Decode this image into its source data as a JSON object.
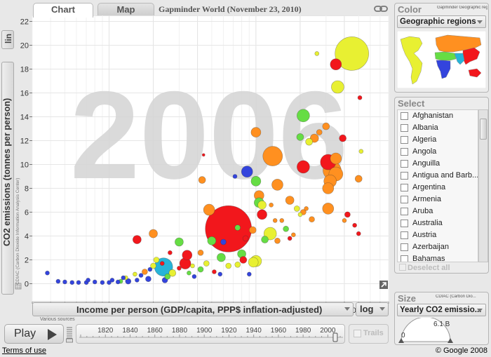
{
  "tabs": [
    {
      "label": "Chart",
      "active": true
    },
    {
      "label": "Map",
      "active": false
    }
  ],
  "title": "Gapminder World (November 23, 2010)",
  "icons": {
    "link": "link-icon",
    "expand": "expand-icon",
    "play": "play-icon"
  },
  "y_scale": "lin",
  "x_scale": "log",
  "year_watermark": "2006",
  "axes": {
    "y_label": "CO2 emissions (tonnes per person)",
    "y_source": "CDIAC (Carbon Dioxide Information Analysis Center)",
    "x_label": "Income per person (GDP/capita, PPP$ inflation-adjusted)",
    "x_source": "Various sources"
  },
  "chart_data": {
    "type": "scatter",
    "x_scale": "log",
    "xlim": [
      300,
      80000
    ],
    "ylim": [
      -1.5,
      22.5
    ],
    "x_ticks": [
      {
        "value": 1000,
        "label": "1 000"
      },
      {
        "value": 2000,
        "label": "2 000"
      },
      {
        "value": 4000,
        "label": "4 000"
      },
      {
        "value": 10000,
        "label": "10 000"
      },
      {
        "value": 20000,
        "label": "20 000"
      },
      {
        "value": 40000,
        "label": "40 000"
      }
    ],
    "y_ticks": [
      0,
      2,
      4,
      6,
      8,
      10,
      12,
      14,
      16,
      18,
      20,
      22
    ],
    "grid": true,
    "points": [
      {
        "x": 6500,
        "y": 4.6,
        "r": 33,
        "color": "#f2171c"
      },
      {
        "x": 45000,
        "y": 19.3,
        "r": 24,
        "color": "#e8f032"
      },
      {
        "x": 2350,
        "y": 1.4,
        "r": 13,
        "color": "#27b4d8"
      },
      {
        "x": 13000,
        "y": 10.7,
        "r": 14,
        "color": "#ff9020"
      },
      {
        "x": 33000,
        "y": 9.5,
        "r": 13,
        "color": "#ff9020"
      },
      {
        "x": 31000,
        "y": 10.2,
        "r": 11,
        "color": "#f2171c"
      },
      {
        "x": 35000,
        "y": 9.2,
        "r": 10,
        "color": "#ff9020"
      },
      {
        "x": 32000,
        "y": 8.6,
        "r": 9,
        "color": "#ff9020"
      },
      {
        "x": 35000,
        "y": 10.5,
        "r": 8,
        "color": "#ff9020"
      },
      {
        "x": 31000,
        "y": 8.0,
        "r": 8,
        "color": "#ff9020"
      },
      {
        "x": 36000,
        "y": 16.5,
        "r": 9,
        "color": "#e8f032"
      },
      {
        "x": 21000,
        "y": 14.1,
        "r": 9,
        "color": "#66dd44"
      },
      {
        "x": 21000,
        "y": 9.8,
        "r": 9,
        "color": "#f2171c"
      },
      {
        "x": 31000,
        "y": 6.3,
        "r": 8,
        "color": "#ff9020"
      },
      {
        "x": 35000,
        "y": 18.4,
        "r": 8,
        "color": "#f2171c"
      },
      {
        "x": 12500,
        "y": 4.2,
        "r": 9,
        "color": "#e8f032"
      },
      {
        "x": 14000,
        "y": 8.3,
        "r": 8,
        "color": "#ff9020"
      },
      {
        "x": 8700,
        "y": 9.4,
        "r": 8,
        "color": "#3344dd"
      },
      {
        "x": 10000,
        "y": 8.6,
        "r": 7,
        "color": "#66dd44"
      },
      {
        "x": 10000,
        "y": 12.7,
        "r": 7,
        "color": "#ff9020"
      },
      {
        "x": 4800,
        "y": 6.2,
        "r": 8,
        "color": "#ff9020"
      },
      {
        "x": 3300,
        "y": 1.7,
        "r": 8,
        "color": "#f2171c"
      },
      {
        "x": 3400,
        "y": 2.4,
        "r": 7,
        "color": "#f2171c"
      },
      {
        "x": 3000,
        "y": 3.5,
        "r": 6,
        "color": "#66dd44"
      },
      {
        "x": 2000,
        "y": 4.2,
        "r": 6,
        "color": "#ff9020"
      },
      {
        "x": 1550,
        "y": 3.7,
        "r": 6,
        "color": "#f2171c"
      },
      {
        "x": 11000,
        "y": 5.8,
        "r": 7,
        "color": "#f2171c"
      },
      {
        "x": 10000,
        "y": 1.9,
        "r": 8,
        "color": "#e8f032"
      },
      {
        "x": 9600,
        "y": 1.8,
        "r": 7,
        "color": "#e8f032"
      },
      {
        "x": 11000,
        "y": 6.6,
        "r": 6,
        "color": "#e8f032"
      },
      {
        "x": 25000,
        "y": 12.2,
        "r": 6,
        "color": "#ff9020"
      },
      {
        "x": 23000,
        "y": 11.9,
        "r": 5,
        "color": "#e8f032"
      },
      {
        "x": 27000,
        "y": 12.7,
        "r": 4,
        "color": "#ff9020"
      },
      {
        "x": 20000,
        "y": 12.3,
        "r": 5,
        "color": "#66dd44"
      },
      {
        "x": 30000,
        "y": 13.2,
        "r": 5,
        "color": "#ff9020"
      },
      {
        "x": 17000,
        "y": 7.0,
        "r": 6,
        "color": "#ff9020"
      },
      {
        "x": 10500,
        "y": 7.4,
        "r": 7,
        "color": "#ff9020"
      },
      {
        "x": 10500,
        "y": 6.8,
        "r": 7,
        "color": "#66dd44"
      },
      {
        "x": 8000,
        "y": 2.5,
        "r": 6,
        "color": "#66dd44"
      },
      {
        "x": 5800,
        "y": 2.2,
        "r": 6,
        "color": "#66dd44"
      },
      {
        "x": 5000,
        "y": 3.6,
        "r": 6,
        "color": "#66dd44"
      },
      {
        "x": 4300,
        "y": 8.7,
        "r": 5,
        "color": "#ff9020"
      },
      {
        "x": 2700,
        "y": 0.9,
        "r": 5,
        "color": "#e8f032"
      },
      {
        "x": 26000,
        "y": 19.3,
        "r": 3,
        "color": "#e8f032"
      },
      {
        "x": 51000,
        "y": 15.6,
        "r": 3,
        "color": "#f2171c"
      },
      {
        "x": 39000,
        "y": 12.2,
        "r": 5,
        "color": "#f2171c"
      },
      {
        "x": 4400,
        "y": 10.8,
        "r": 2,
        "color": "#f2171c"
      },
      {
        "x": 52000,
        "y": 11.1,
        "r": 3,
        "color": "#e8f032"
      },
      {
        "x": 50000,
        "y": 8.8,
        "r": 5,
        "color": "#ff9020"
      },
      {
        "x": 47000,
        "y": 4.9,
        "r": 3,
        "color": "#f2171c"
      },
      {
        "x": 50000,
        "y": 4.2,
        "r": 3,
        "color": "#f2171c"
      },
      {
        "x": 42000,
        "y": 5.8,
        "r": 4,
        "color": "#f2171c"
      },
      {
        "x": 40000,
        "y": 5.3,
        "r": 3,
        "color": "#ff9020"
      },
      {
        "x": 21000,
        "y": 6.0,
        "r": 4,
        "color": "#ff9020"
      },
      {
        "x": 22000,
        "y": 6.3,
        "r": 3,
        "color": "#ff9020"
      },
      {
        "x": 24000,
        "y": 5.4,
        "r": 4,
        "color": "#ff9020"
      },
      {
        "x": 20000,
        "y": 5.8,
        "r": 3,
        "color": "#e8f032"
      },
      {
        "x": 19000,
        "y": 6.3,
        "r": 4,
        "color": "#e8f032"
      },
      {
        "x": 16000,
        "y": 4.6,
        "r": 4,
        "color": "#66dd44"
      },
      {
        "x": 15000,
        "y": 5.3,
        "r": 3,
        "color": "#ff9020"
      },
      {
        "x": 17000,
        "y": 3.8,
        "r": 3,
        "color": "#f2171c"
      },
      {
        "x": 14000,
        "y": 3.6,
        "r": 4,
        "color": "#ff9020"
      },
      {
        "x": 18000,
        "y": 4.1,
        "r": 3,
        "color": "#ff9020"
      },
      {
        "x": 9500,
        "y": 4.5,
        "r": 5,
        "color": "#ff9020"
      },
      {
        "x": 11500,
        "y": 3.7,
        "r": 5,
        "color": "#66dd44"
      },
      {
        "x": 8500,
        "y": 3.8,
        "r": 4,
        "color": "#f2171c"
      },
      {
        "x": 6000,
        "y": 3.5,
        "r": 4,
        "color": "#3344dd"
      },
      {
        "x": 7500,
        "y": 4.7,
        "r": 4,
        "color": "#66dd44"
      },
      {
        "x": 8200,
        "y": 2.0,
        "r": 5,
        "color": "#f2171c"
      },
      {
        "x": 7500,
        "y": 1.6,
        "r": 4,
        "color": "#e8f032"
      },
      {
        "x": 6500,
        "y": 1.5,
        "r": 4,
        "color": "#e8f032"
      },
      {
        "x": 4200,
        "y": 2.6,
        "r": 4,
        "color": "#ff9020"
      },
      {
        "x": 3700,
        "y": 1.5,
        "r": 3,
        "color": "#e8f032"
      },
      {
        "x": 4600,
        "y": 1.7,
        "r": 4,
        "color": "#e8f032"
      },
      {
        "x": 4200,
        "y": 1.2,
        "r": 4,
        "color": "#66dd44"
      },
      {
        "x": 3500,
        "y": 0.9,
        "r": 3,
        "color": "#66dd44"
      },
      {
        "x": 3000,
        "y": 1.3,
        "r": 3,
        "color": "#f2171c"
      },
      {
        "x": 2600,
        "y": 2.6,
        "r": 3,
        "color": "#f2171c"
      },
      {
        "x": 2100,
        "y": 2.0,
        "r": 4,
        "color": "#e8f032"
      },
      {
        "x": 2000,
        "y": 1.5,
        "r": 4,
        "color": "#e8f032"
      },
      {
        "x": 1750,
        "y": 1.0,
        "r": 4,
        "color": "#ff9020"
      },
      {
        "x": 1500,
        "y": 0.8,
        "r": 3,
        "color": "#e8f032"
      },
      {
        "x": 1300,
        "y": 0.5,
        "r": 3,
        "color": "#e8f032"
      },
      {
        "x": 1200,
        "y": 0.2,
        "r": 3,
        "color": "#66dd44"
      },
      {
        "x": 2400,
        "y": 0.3,
        "r": 4,
        "color": "#3344dd"
      },
      {
        "x": 2500,
        "y": 0.6,
        "r": 4,
        "color": "#66dd44"
      },
      {
        "x": 1850,
        "y": 0.4,
        "r": 4,
        "color": "#3344dd"
      },
      {
        "x": 1550,
        "y": 0.3,
        "r": 3,
        "color": "#3344dd"
      },
      {
        "x": 1350,
        "y": 0.2,
        "r": 4,
        "color": "#3344dd"
      },
      {
        "x": 1150,
        "y": 0.15,
        "r": 3,
        "color": "#3344dd"
      },
      {
        "x": 1000,
        "y": 0.1,
        "r": 3,
        "color": "#3344dd"
      },
      {
        "x": 900,
        "y": 0.1,
        "r": 3,
        "color": "#3344dd"
      },
      {
        "x": 800,
        "y": 0.15,
        "r": 3,
        "color": "#3344dd"
      },
      {
        "x": 700,
        "y": 0.1,
        "r": 3,
        "color": "#3344dd"
      },
      {
        "x": 620,
        "y": 0.1,
        "r": 3,
        "color": "#3344dd"
      },
      {
        "x": 560,
        "y": 0.1,
        "r": 3,
        "color": "#3344dd"
      },
      {
        "x": 500,
        "y": 0.15,
        "r": 3,
        "color": "#3344dd"
      },
      {
        "x": 450,
        "y": 0.2,
        "r": 3,
        "color": "#3344dd"
      },
      {
        "x": 380,
        "y": 0.9,
        "r": 3,
        "color": "#3344dd"
      },
      {
        "x": 720,
        "y": 0.3,
        "r": 3,
        "color": "#3344dd"
      },
      {
        "x": 1050,
        "y": 0.3,
        "r": 3,
        "color": "#3344dd"
      },
      {
        "x": 1250,
        "y": 0.5,
        "r": 3,
        "color": "#3344dd"
      },
      {
        "x": 1650,
        "y": 0.7,
        "r": 3,
        "color": "#3344dd"
      },
      {
        "x": 1900,
        "y": 1.2,
        "r": 3,
        "color": "#3344dd"
      },
      {
        "x": 2300,
        "y": 1.7,
        "r": 3,
        "color": "#f2171c"
      },
      {
        "x": 3800,
        "y": 0.6,
        "r": 3,
        "color": "#3344dd"
      },
      {
        "x": 5200,
        "y": 1.0,
        "r": 3,
        "color": "#f2171c"
      },
      {
        "x": 5700,
        "y": 0.8,
        "r": 3,
        "color": "#3344dd"
      },
      {
        "x": 9000,
        "y": 0.8,
        "r": 3,
        "color": "#3344dd"
      },
      {
        "x": 7200,
        "y": 9.0,
        "r": 3,
        "color": "#3344dd"
      },
      {
        "x": 13500,
        "y": 5.3,
        "r": 3,
        "color": "#ff9020"
      },
      {
        "x": 12700,
        "y": 6.6,
        "r": 3,
        "color": "#ff9020"
      }
    ]
  },
  "timeline": {
    "years": [
      "1820",
      "1840",
      "1860",
      "1880",
      "1900",
      "1920",
      "1940",
      "1960",
      "1980",
      "2000"
    ],
    "start_year": 1800,
    "end_year": 2010,
    "current_year": 2006
  },
  "play": {
    "label": "Play"
  },
  "trails": {
    "label": "Trails"
  },
  "color_panel": {
    "heading": "Color",
    "source": "Gapminder Geographic regions",
    "selected": "Geographic regions",
    "regions": [
      {
        "name": "americas",
        "color": "#e8f032"
      },
      {
        "name": "europe-central-asia",
        "color": "#ff9020"
      },
      {
        "name": "middle-east-north-africa",
        "color": "#66dd44"
      },
      {
        "name": "sub-saharan-africa",
        "color": "#3344dd"
      },
      {
        "name": "east-asia-pacific",
        "color": "#f2171c"
      },
      {
        "name": "south-asia",
        "color": "#27b4d8"
      }
    ]
  },
  "select_panel": {
    "heading": "Select",
    "countries": [
      "Afghanistan",
      "Albania",
      "Algeria",
      "Angola",
      "Anguilla",
      "Antigua and Barb...",
      "Argentina",
      "Armenia",
      "Aruba",
      "Australia",
      "Austria",
      "Azerbaijan",
      "Bahamas"
    ],
    "deselect_label": "Deselect all"
  },
  "size_panel": {
    "heading": "Size",
    "source": "CDIAC (Carbon Dio...",
    "selected": "Yearly CO2 emissio...",
    "min_label": "0",
    "max_label": "6.1 B"
  },
  "footer": {
    "terms": "Terms of use",
    "copyright": "© Google 2008"
  }
}
